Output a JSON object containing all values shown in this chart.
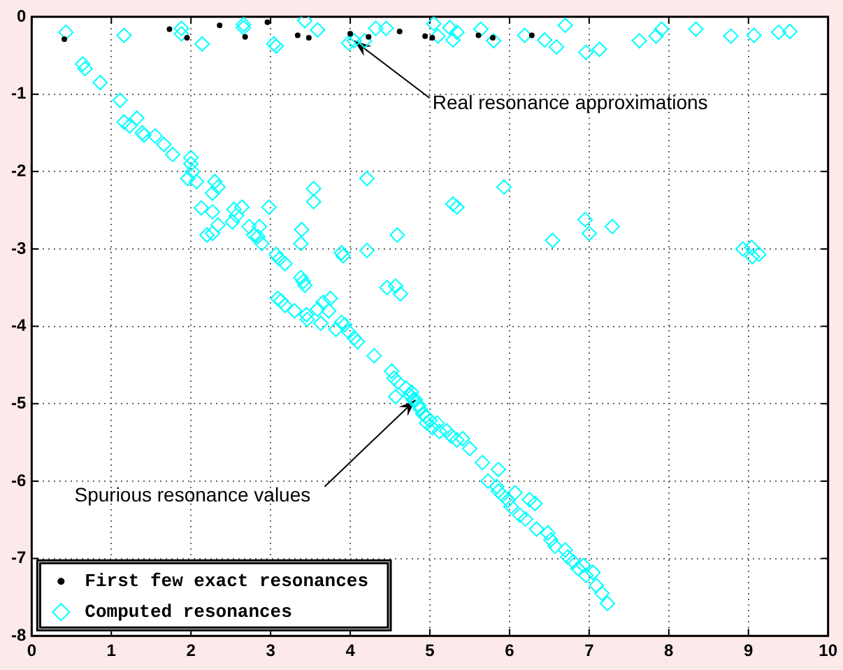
{
  "chart_data": {
    "type": "scatter",
    "xlim": [
      0,
      10
    ],
    "ylim": [
      -8,
      0
    ],
    "xticks": [
      0,
      1,
      2,
      3,
      4,
      5,
      6,
      7,
      8,
      9,
      10
    ],
    "yticks": [
      0,
      -1,
      -2,
      -3,
      -4,
      -5,
      -6,
      -7,
      -8
    ],
    "grid": true,
    "legend": "bottom left",
    "annotations": [
      {
        "text": "Real resonance approximations",
        "x": 4.05,
        "y": -0.31
      },
      {
        "text": "Spurious resonance values",
        "x": 4.82,
        "y": -4.95
      }
    ],
    "series": [
      {
        "name": "First few exact resonances",
        "color": "#000000",
        "marker": "circle",
        "x": [
          0.41,
          1.73,
          1.95,
          2.36,
          2.68,
          2.96,
          3.34,
          3.48,
          4.0,
          4.23,
          4.62,
          4.94,
          5.03,
          5.61,
          5.79,
          6.28
        ],
        "values": [
          -0.29,
          -0.16,
          -0.27,
          -0.11,
          -0.26,
          -0.07,
          -0.24,
          -0.27,
          -0.22,
          -0.26,
          -0.19,
          -0.25,
          -0.27,
          -0.24,
          -0.27,
          -0.24
        ]
      },
      {
        "name": "Computed resonances",
        "color": "#00ffff",
        "marker": "diamond",
        "x": [
          0.43,
          1.16,
          1.88,
          1.88,
          2.14,
          2.66,
          2.66,
          3.04,
          3.07,
          3.43,
          3.59,
          3.98,
          4.05,
          4.18,
          4.32,
          4.45,
          5.05,
          5.1,
          5.25,
          5.29,
          5.34,
          5.64,
          5.8,
          6.19,
          6.44,
          6.59,
          6.7,
          6.96,
          7.13,
          7.63,
          7.84,
          7.91,
          8.34,
          8.78,
          9.07,
          9.38,
          9.52,
          5.93,
          5.29,
          5.34,
          6.54,
          6.95,
          7.0,
          7.29,
          8.93,
          9.04,
          9.05,
          9.13,
          0.64,
          0.67,
          0.86,
          1.11,
          1.16,
          1.23,
          1.32,
          1.39,
          1.41,
          1.55,
          1.66,
          1.77,
          2.0,
          2.0,
          1.96,
          2.02,
          2.07,
          2.3,
          2.34,
          2.27,
          2.13,
          2.27,
          2.2,
          2.27,
          2.34,
          2.54,
          2.52,
          2.57,
          2.64,
          2.73,
          2.79,
          2.86,
          2.89,
          2.84,
          2.98,
          3.54,
          3.54,
          3.39,
          3.38,
          4.21,
          4.21,
          4.59,
          4.46,
          4.57,
          4.63,
          3.07,
          3.11,
          3.18,
          3.89,
          3.91,
          3.38,
          3.41,
          3.43,
          3.09,
          3.13,
          3.18,
          3.3,
          3.45,
          3.59,
          3.66,
          3.75,
          3.73,
          3.63,
          3.89,
          3.93,
          3.46,
          3.82,
          3.98,
          4.05,
          4.09,
          4.3,
          4.52,
          4.55,
          4.6,
          4.57,
          4.7,
          4.75,
          4.79,
          4.86,
          4.91,
          4.96,
          4.77,
          4.82,
          4.88,
          4.95,
          5.0,
          5.03,
          5.09,
          5.12,
          5.21,
          5.27,
          5.34,
          5.41,
          5.5,
          5.66,
          5.73,
          5.86,
          5.84,
          5.86,
          5.91,
          5.98,
          6.02,
          6.07,
          6.13,
          6.2,
          6.25,
          6.32,
          6.34,
          6.48,
          6.52,
          6.57,
          6.7,
          6.73,
          6.8,
          6.86,
          6.93,
          6.96,
          7.05,
          7.09,
          7.16,
          7.23
        ],
        "values": [
          -0.2,
          -0.24,
          -0.15,
          -0.22,
          -0.35,
          -0.1,
          -0.14,
          -0.35,
          -0.38,
          -0.05,
          -0.17,
          -0.34,
          -0.31,
          -0.31,
          -0.15,
          -0.15,
          -0.09,
          -0.25,
          -0.14,
          -0.3,
          -0.2,
          -0.16,
          -0.31,
          -0.24,
          -0.3,
          -0.39,
          -0.11,
          -0.46,
          -0.42,
          -0.31,
          -0.25,
          -0.16,
          -0.16,
          -0.25,
          -0.24,
          -0.2,
          -0.19,
          -2.2,
          -2.42,
          -2.46,
          -2.89,
          -2.62,
          -2.8,
          -2.71,
          -3.0,
          -2.98,
          -3.1,
          -3.07,
          -0.61,
          -0.67,
          -0.85,
          -1.08,
          -1.36,
          -1.41,
          -1.31,
          -1.5,
          -1.53,
          -1.54,
          -1.65,
          -1.78,
          -1.82,
          -1.9,
          -2.09,
          -2.0,
          -2.13,
          -2.13,
          -2.2,
          -2.28,
          -2.47,
          -2.52,
          -2.82,
          -2.8,
          -2.69,
          -2.49,
          -2.65,
          -2.57,
          -2.46,
          -2.71,
          -2.82,
          -2.71,
          -2.93,
          -2.84,
          -2.46,
          -2.22,
          -2.39,
          -2.75,
          -2.93,
          -2.09,
          -3.02,
          -2.82,
          -3.5,
          -3.48,
          -3.58,
          -3.07,
          -3.13,
          -3.19,
          -3.05,
          -3.09,
          -3.37,
          -3.42,
          -3.47,
          -3.64,
          -3.67,
          -3.73,
          -3.8,
          -3.85,
          -3.78,
          -3.69,
          -3.64,
          -3.8,
          -3.96,
          -3.95,
          -3.98,
          -3.91,
          -4.04,
          -4.07,
          -4.15,
          -4.2,
          -4.38,
          -4.58,
          -4.67,
          -4.72,
          -4.91,
          -4.8,
          -4.89,
          -4.95,
          -5.02,
          -5.13,
          -5.25,
          -4.85,
          -4.95,
          -5.07,
          -5.16,
          -5.22,
          -5.31,
          -5.25,
          -5.36,
          -5.35,
          -5.42,
          -5.47,
          -5.45,
          -5.58,
          -5.76,
          -6.0,
          -5.85,
          -6.07,
          -6.13,
          -6.18,
          -6.25,
          -6.33,
          -6.15,
          -6.44,
          -6.49,
          -6.24,
          -6.29,
          -6.62,
          -6.67,
          -6.76,
          -6.84,
          -6.89,
          -6.98,
          -7.04,
          -7.13,
          -7.09,
          -7.22,
          -7.18,
          -7.35,
          -7.45,
          -7.58
        ]
      }
    ]
  }
}
